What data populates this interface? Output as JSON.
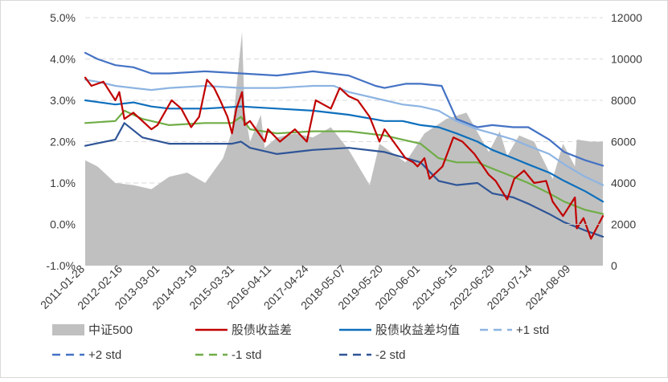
{
  "colors": {
    "index_area": "#c0c0c0",
    "spread": "#c00000",
    "mean": "#0d6fbd",
    "plus1": "#8db4e2",
    "plus2": "#4472c4",
    "minus1": "#70ad47",
    "minus2": "#2f5597",
    "grid": "#d9d9d9",
    "axis": "#bfbfbf"
  },
  "legend": [
    {
      "key": "index",
      "label": "中证500",
      "style": "area"
    },
    {
      "key": "spread",
      "label": "股债收益差",
      "style": "solid"
    },
    {
      "key": "mean",
      "label": "股债收益差均值",
      "style": "solid"
    },
    {
      "key": "plus1",
      "label": "+1 std",
      "style": "dash"
    },
    {
      "key": "plus2",
      "label": "+2 std",
      "style": "dash"
    },
    {
      "key": "minus1",
      "label": "-1 std",
      "style": "dash"
    },
    {
      "key": "minus2",
      "label": "-2 std",
      "style": "dash"
    }
  ],
  "chart_data": {
    "type": "line",
    "x_type": "date",
    "x_range": [
      "2011-01-28",
      "2025-06-30"
    ],
    "x_tick_labels": [
      "2011-01-28",
      "2012-02-16",
      "2013-03-01",
      "2014-03-19",
      "2015-03-31",
      "2016-04-11",
      "2017-04-24",
      "2018-05-07",
      "2019-05-20",
      "2020-06-01",
      "2021-06-15",
      "2022-06-29",
      "2023-07-14",
      "2024-08-09"
    ],
    "y_left": {
      "min": -1.0,
      "max": 5.0,
      "ticks": [
        "-1.0%",
        "0.0%",
        "1.0%",
        "2.0%",
        "3.0%",
        "4.0%",
        "5.0%"
      ]
    },
    "y_right": {
      "min": 0,
      "max": 12000,
      "ticks": [
        "0",
        "2000",
        "4000",
        "6000",
        "8000",
        "10000",
        "12000"
      ]
    },
    "grid": "horizontal dashed",
    "legend_position": "bottom",
    "series": [
      {
        "name": "中证500",
        "axis": "right",
        "type": "area",
        "x": [
          "2011-01-28",
          "2011-06-01",
          "2011-12-01",
          "2012-06-01",
          "2012-12-01",
          "2013-06-01",
          "2013-12-01",
          "2014-06-01",
          "2014-12-01",
          "2015-03-01",
          "2015-06-12",
          "2015-07-08",
          "2015-09-01",
          "2015-12-20",
          "2016-01-28",
          "2016-06-01",
          "2016-12-01",
          "2017-06-01",
          "2017-12-01",
          "2018-06-01",
          "2018-12-31",
          "2019-04-10",
          "2019-12-31",
          "2020-07-10",
          "2021-02-18",
          "2021-09-10",
          "2022-04-26",
          "2022-08-15",
          "2022-10-31",
          "2023-03-01",
          "2023-08-01",
          "2024-02-05",
          "2024-05-20",
          "2024-09-18",
          "2024-10-08",
          "2025-03-01",
          "2025-06-30"
        ],
        "values": [
          5100,
          4800,
          4000,
          3900,
          3700,
          4300,
          4500,
          4000,
          5200,
          6500,
          11300,
          7500,
          6000,
          7300,
          5700,
          6200,
          6400,
          6200,
          6700,
          5600,
          3900,
          5900,
          5000,
          6400,
          7100,
          7400,
          5500,
          6500,
          5300,
          6300,
          6000,
          4200,
          5900,
          4800,
          6100,
          6000,
          6000
        ]
      },
      {
        "name": "股债收益差",
        "axis": "left",
        "type": "line",
        "x": [
          "2011-01-28",
          "2011-04-01",
          "2011-08-01",
          "2011-12-01",
          "2012-01-10",
          "2012-03-01",
          "2012-06-01",
          "2012-09-01",
          "2012-12-01",
          "2013-02-01",
          "2013-06-25",
          "2013-10-01",
          "2014-01-10",
          "2014-04-01",
          "2014-06-20",
          "2014-09-01",
          "2014-11-01",
          "2015-01-15",
          "2015-03-01",
          "2015-04-15",
          "2015-06-12",
          "2015-07-08",
          "2015-09-01",
          "2016-01-28",
          "2016-03-01",
          "2016-07-01",
          "2016-12-01",
          "2017-04-01",
          "2017-07-01",
          "2017-12-01",
          "2018-03-01",
          "2018-06-01",
          "2018-09-01",
          "2018-12-31",
          "2019-04-10",
          "2019-06-01",
          "2019-12-31",
          "2020-03-20",
          "2020-05-01",
          "2020-07-10",
          "2020-09-01",
          "2021-01-10",
          "2021-05-01",
          "2021-08-01",
          "2021-12-01",
          "2022-04-26",
          "2022-07-05",
          "2022-10-31",
          "2023-01-10",
          "2023-04-20",
          "2023-08-01",
          "2023-12-01",
          "2024-02-05",
          "2024-05-20",
          "2024-09-18",
          "2024-10-08",
          "2024-12-15",
          "2025-03-01",
          "2025-06-30"
        ],
        "values": [
          3.55,
          3.35,
          3.45,
          3.0,
          3.2,
          2.55,
          2.7,
          2.5,
          2.3,
          2.4,
          3.0,
          2.8,
          2.35,
          2.6,
          3.5,
          3.3,
          3.0,
          2.6,
          2.2,
          2.8,
          3.2,
          2.4,
          2.5,
          2.0,
          2.3,
          2.0,
          2.3,
          2.0,
          3.0,
          2.8,
          3.3,
          3.1,
          3.0,
          2.6,
          2.0,
          2.3,
          1.6,
          1.5,
          1.4,
          1.6,
          1.1,
          1.4,
          2.1,
          2.0,
          1.7,
          1.2,
          1.05,
          0.6,
          1.1,
          1.3,
          1.0,
          1.05,
          0.55,
          0.2,
          0.65,
          -0.1,
          0.15,
          -0.35,
          0.2
        ]
      },
      {
        "name": "股债收益差均值",
        "axis": "left",
        "type": "line",
        "x": [
          "2011-01-28",
          "2011-12-01",
          "2012-06-01",
          "2012-12-01",
          "2013-06-01",
          "2014-06-01",
          "2015-06-01",
          "2016-06-01",
          "2017-06-01",
          "2018-06-01",
          "2019-06-01",
          "2019-12-01",
          "2020-06-01",
          "2020-12-01",
          "2021-06-01",
          "2022-01-01",
          "2022-06-01",
          "2023-01-01",
          "2023-06-01",
          "2024-01-01",
          "2024-06-01",
          "2025-01-01",
          "2025-06-30"
        ],
        "values": [
          3.0,
          2.9,
          2.95,
          2.85,
          2.8,
          2.8,
          2.85,
          2.8,
          2.75,
          2.65,
          2.5,
          2.5,
          2.4,
          2.35,
          2.2,
          2.0,
          1.8,
          1.6,
          1.45,
          1.25,
          1.05,
          0.8,
          0.55
        ]
      },
      {
        "name": "+1 std",
        "axis": "left",
        "type": "line",
        "x": [
          "2011-01-28",
          "2011-06-01",
          "2011-12-01",
          "2012-06-01",
          "2012-12-01",
          "2013-06-01",
          "2014-06-01",
          "2015-06-01",
          "2016-06-01",
          "2017-06-01",
          "2018-01-01",
          "2018-06-01",
          "2019-06-01",
          "2019-12-01",
          "2020-06-01",
          "2020-12-01",
          "2021-06-01",
          "2022-01-01",
          "2022-06-01",
          "2023-01-01",
          "2023-06-01",
          "2024-01-01",
          "2024-06-01",
          "2025-01-01",
          "2025-06-30"
        ],
        "values": [
          3.5,
          3.45,
          3.35,
          3.3,
          3.25,
          3.3,
          3.35,
          3.3,
          3.3,
          3.35,
          3.35,
          3.2,
          3.0,
          2.9,
          2.85,
          2.75,
          2.5,
          2.3,
          2.2,
          2.05,
          1.9,
          1.7,
          1.45,
          1.15,
          0.95
        ]
      },
      {
        "name": "+2 std",
        "axis": "left",
        "type": "line",
        "x": [
          "2011-01-28",
          "2011-06-01",
          "2011-12-01",
          "2012-06-01",
          "2012-12-01",
          "2013-06-01",
          "2014-06-01",
          "2015-06-01",
          "2016-06-01",
          "2017-06-01",
          "2018-06-01",
          "2019-03-01",
          "2019-06-01",
          "2020-01-01",
          "2020-06-01",
          "2021-01-01",
          "2021-06-01",
          "2022-01-01",
          "2022-06-01",
          "2023-01-01",
          "2023-06-01",
          "2024-01-01",
          "2024-06-01",
          "2025-01-01",
          "2025-06-30"
        ],
        "values": [
          4.15,
          4.0,
          3.85,
          3.8,
          3.65,
          3.65,
          3.7,
          3.65,
          3.6,
          3.7,
          3.6,
          3.35,
          3.3,
          3.4,
          3.4,
          3.35,
          2.55,
          2.35,
          2.4,
          2.35,
          2.35,
          2.05,
          1.75,
          1.55,
          1.42
        ]
      },
      {
        "name": "-1 std",
        "axis": "left",
        "type": "line",
        "x": [
          "2011-01-28",
          "2011-12-01",
          "2012-03-01",
          "2012-09-01",
          "2013-06-01",
          "2014-06-01",
          "2015-03-01",
          "2015-06-01",
          "2015-09-01",
          "2016-06-01",
          "2017-06-01",
          "2018-06-01",
          "2019-06-01",
          "2020-06-01",
          "2020-12-01",
          "2021-06-01",
          "2022-01-01",
          "2022-06-01",
          "2023-01-01",
          "2023-06-01",
          "2024-01-01",
          "2024-06-01",
          "2025-01-01",
          "2025-06-30"
        ],
        "values": [
          2.45,
          2.5,
          2.75,
          2.55,
          2.4,
          2.45,
          2.45,
          2.6,
          2.3,
          2.2,
          2.25,
          2.25,
          2.15,
          1.95,
          1.6,
          1.5,
          1.5,
          1.35,
          1.15,
          1.0,
          0.75,
          0.55,
          0.35,
          0.25
        ]
      },
      {
        "name": "-2 std",
        "axis": "left",
        "type": "line",
        "x": [
          "2011-01-28",
          "2011-12-01",
          "2012-03-01",
          "2012-09-01",
          "2013-06-01",
          "2014-06-01",
          "2015-03-01",
          "2015-06-01",
          "2015-09-01",
          "2016-06-01",
          "2017-06-01",
          "2018-06-01",
          "2019-06-01",
          "2020-06-01",
          "2020-12-01",
          "2021-06-01",
          "2022-01-01",
          "2022-06-01",
          "2023-01-01",
          "2023-06-01",
          "2024-01-01",
          "2024-06-01",
          "2025-01-01",
          "2025-06-30"
        ],
        "values": [
          1.9,
          2.05,
          2.45,
          2.1,
          1.95,
          1.95,
          1.95,
          2.0,
          1.85,
          1.7,
          1.8,
          1.85,
          1.75,
          1.5,
          1.05,
          0.95,
          1.0,
          0.75,
          0.65,
          0.5,
          0.25,
          0.05,
          -0.15,
          -0.3
        ]
      }
    ]
  }
}
